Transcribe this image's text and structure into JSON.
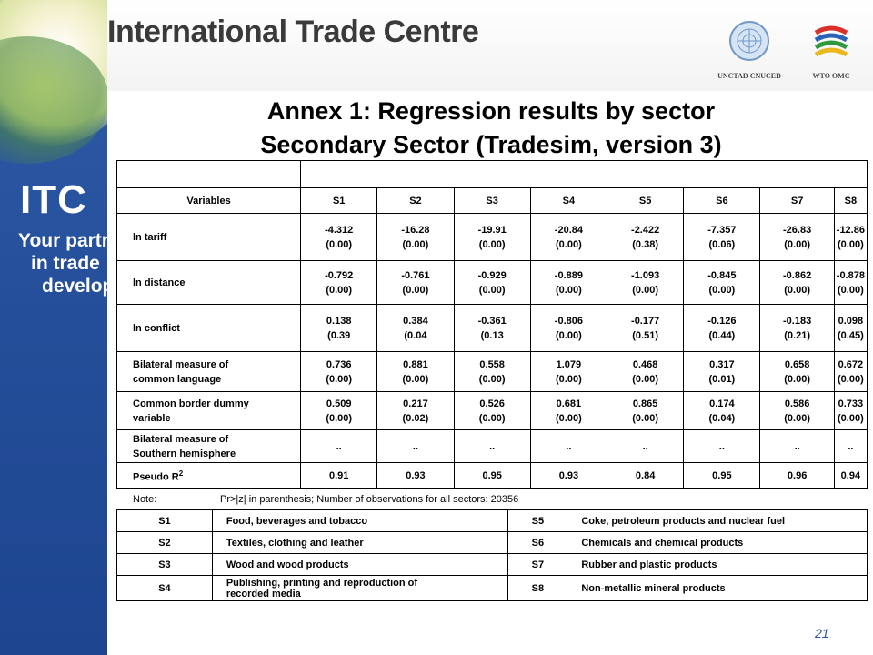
{
  "header": {
    "org_title": "International Trade Centre",
    "logos": [
      {
        "name": "un-logo",
        "caption": "UNCTAD CNUCED"
      },
      {
        "name": "wto-logo",
        "caption": "WTO OMC"
      }
    ]
  },
  "sidebar": {
    "itc": "ITC",
    "tagline": [
      "Your partner",
      "in trade",
      "development"
    ]
  },
  "slide": {
    "title_line1": "Annex 1: Regression results by sector",
    "title_line2": "Secondary Sector (Tradesim, version 3)"
  },
  "regression_table": {
    "header": [
      "Variables",
      "S1",
      "S2",
      "S3",
      "S4",
      "S5",
      "S6",
      "S7",
      "S8"
    ],
    "rows": [
      {
        "label": [
          "ln tariff"
        ],
        "values": [
          [
            "-4.312",
            "(0.00)"
          ],
          [
            "-16.28",
            "(0.00)"
          ],
          [
            "-19.91",
            "(0.00)"
          ],
          [
            "-20.84",
            "(0.00)"
          ],
          [
            "-2.422",
            "(0.38)"
          ],
          [
            "-7.357",
            "(0.06)"
          ],
          [
            "-26.83",
            "(0.00)"
          ],
          [
            "-12.86",
            "(0.00)"
          ]
        ]
      },
      {
        "label": [
          "ln distance"
        ],
        "values": [
          [
            "-0.792",
            "(0.00)"
          ],
          [
            "-0.761",
            "(0.00)"
          ],
          [
            "-0.929",
            "(0.00)"
          ],
          [
            "-0.889",
            "(0.00)"
          ],
          [
            "-1.093",
            "(0.00)"
          ],
          [
            "-0.845",
            "(0.00)"
          ],
          [
            "-0.862",
            "(0.00)"
          ],
          [
            "-0.878",
            "(0.00)"
          ]
        ]
      },
      {
        "label": [
          "ln conflict"
        ],
        "values": [
          [
            "0.138",
            "(0.39"
          ],
          [
            "0.384",
            "(0.04"
          ],
          [
            "-0.361",
            "(0.13"
          ],
          [
            "-0.806",
            "(0.00)"
          ],
          [
            "-0.177",
            "(0.51)"
          ],
          [
            "-0.126",
            "(0.44)"
          ],
          [
            "-0.183",
            "(0.21)"
          ],
          [
            "0.098",
            "(0.45)"
          ]
        ]
      },
      {
        "label": [
          "Bilateral measure of",
          "common language"
        ],
        "values": [
          [
            "0.736",
            "(0.00)"
          ],
          [
            "0.881",
            "(0.00)"
          ],
          [
            "0.558",
            "(0.00)"
          ],
          [
            "1.079",
            "(0.00)"
          ],
          [
            "0.468",
            "(0.00)"
          ],
          [
            "0.317",
            "(0.01)"
          ],
          [
            "0.658",
            "(0.00)"
          ],
          [
            "0.672",
            "(0.00)"
          ]
        ]
      },
      {
        "label": [
          "Common border dummy",
          "variable"
        ],
        "values": [
          [
            "0.509",
            "(0.00)"
          ],
          [
            "0.217",
            "(0.02)"
          ],
          [
            "0.526",
            "(0.00)"
          ],
          [
            "0.681",
            "(0.00)"
          ],
          [
            "0.865",
            "(0.00)"
          ],
          [
            "0.174",
            "(0.04)"
          ],
          [
            "0.586",
            "(0.00)"
          ],
          [
            "0.733",
            "(0.00)"
          ]
        ]
      },
      {
        "label": [
          "Bilateral measure of",
          "Southern hemisphere"
        ],
        "values": [
          [
            ".."
          ],
          [
            ".."
          ],
          [
            ".."
          ],
          [
            ".."
          ],
          [
            ".."
          ],
          [
            ".."
          ],
          [
            ".."
          ],
          [
            ".."
          ]
        ]
      }
    ],
    "pseudo_r2": {
      "label": "Pseudo R",
      "sup": "2",
      "values": [
        "0.91",
        "0.93",
        "0.95",
        "0.93",
        "0.84",
        "0.95",
        "0.96",
        "0.94"
      ]
    }
  },
  "note": {
    "label": "Note:",
    "text": "Pr>|z| in parenthesis; Number of observations for all sectors: 20356"
  },
  "sector_table": {
    "rows": [
      {
        "left_code": "S1",
        "left_desc": [
          "Food, beverages and tobacco"
        ],
        "right_code": "S5",
        "right_desc": "Coke, petroleum products and nuclear fuel"
      },
      {
        "left_code": "S2",
        "left_desc": [
          "Textiles, clothing and leather"
        ],
        "right_code": "S6",
        "right_desc": "Chemicals and chemical products"
      },
      {
        "left_code": "S3",
        "left_desc": [
          "Wood and wood products"
        ],
        "right_code": "S7",
        "right_desc": "Rubber and plastic products"
      },
      {
        "left_code": "S4",
        "left_desc": [
          "Publishing, printing and reproduction of",
          "recorded media"
        ],
        "right_code": "S8",
        "right_desc": "Non-metallic mineral products"
      }
    ]
  },
  "page_number": "21",
  "colors": {
    "sidebar_blue": "#2f5ca8",
    "page_number": "#2a4fa0"
  }
}
